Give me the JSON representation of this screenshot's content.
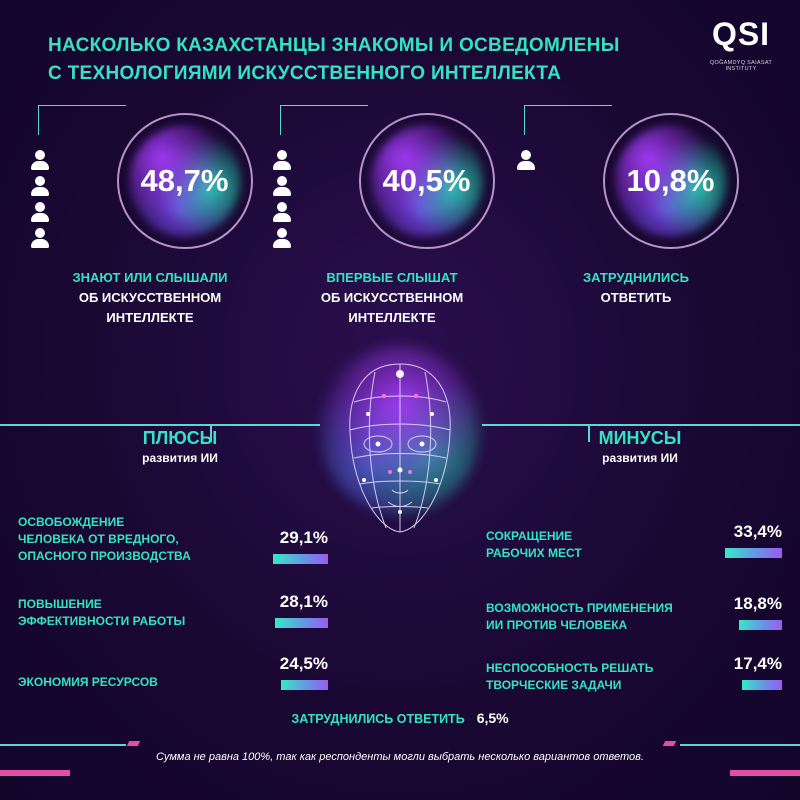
{
  "title": {
    "line1": "НАСКОЛЬКО КАЗАХСТАНЦЫ ЗНАКОМЫ И ОСВЕДОМЛЕНЫ",
    "line2": "С ТЕХНОЛОГИЯМИ ИСКУССТВЕННОГО ИНТЕЛЛЕКТА"
  },
  "logo": {
    "text": "QSI",
    "subtitle": "QOĞAMDYQ SAIASAT INSTITUTY"
  },
  "chart_data": [
    {
      "type": "pie",
      "title": "",
      "categories": [
        "ЗНАЮТ ИЛИ СЛЫШАЛИ ОБ ИСКУССТВЕННОМ ИНТЕЛЛЕКТЕ",
        "ВПЕРВЫЕ СЛЫШАТ ОБ ИСКУССТВЕННОМ ИНТЕЛЛЕКТЕ",
        "ЗАТРУДНИЛИСЬ ОТВЕТИТЬ"
      ],
      "values": [
        48.7,
        40.5,
        10.8
      ],
      "labels": [
        "48,7%",
        "40,5%",
        "10,8%"
      ],
      "items": [
        {
          "value_label": "48,7%",
          "people": 4,
          "l1": "ЗНАЮТ ИЛИ СЛЫШАЛИ",
          "l2": "ОБ ИСКУССТВЕННОМ",
          "l3": "ИНТЕЛЛЕКТЕ"
        },
        {
          "value_label": "40,5%",
          "people": 4,
          "l1": "ВПЕРВЫЕ СЛЫШАТ",
          "l2": "ОБ ИСКУССТВЕННОМ",
          "l3": "ИНТЕЛЛЕКТЕ"
        },
        {
          "value_label": "10,8%",
          "people": 1,
          "l1": "ЗАТРУДНИЛИСЬ",
          "l2": "ОТВЕТИТЬ",
          "l3": ""
        }
      ]
    },
    {
      "type": "bar",
      "title": "ПЛЮСЫ",
      "subtitle": "развития ИИ",
      "orientation": "horizontal",
      "categories": [
        "ОСВОБОЖДЕНИЕ ЧЕЛОВЕКА ОТ ВРЕДНОГО, ОПАСНОГО ПРОИЗВОДСТВА",
        "ПОВЫШЕНИЕ ЭФФЕКТИВНОСТИ РАБОТЫ",
        "ЭКОНОМИЯ РЕСУРСОВ"
      ],
      "values": [
        29.1,
        28.1,
        24.5
      ],
      "labels": [
        "29,1%",
        "28,1%",
        "24,5%"
      ],
      "label_lines": [
        [
          "ОСВОБОЖДЕНИЕ",
          "ЧЕЛОВЕКА ОТ ВРЕДНОГО,",
          "ОПАСНОГО ПРОИЗВОДСТВА"
        ],
        [
          "ПОВЫШЕНИЕ",
          "ЭФФЕКТИВНОСТИ РАБОТЫ"
        ],
        [
          "ЭКОНОМИЯ РЕСУРСОВ"
        ]
      ]
    },
    {
      "type": "bar",
      "title": "МИНУСЫ",
      "subtitle": "развития ИИ",
      "orientation": "horizontal",
      "categories": [
        "СОКРАЩЕНИЕ РАБОЧИХ МЕСТ",
        "ВОЗМОЖНОСТЬ ПРИМЕНЕНИЯ ИИ ПРОТИВ ЧЕЛОВЕКА",
        "НЕСПОСОБНОСТЬ РЕШАТЬ ТВОРЧЕСКИЕ ЗАДАЧИ"
      ],
      "values": [
        33.4,
        18.8,
        17.4
      ],
      "labels": [
        "33,4%",
        "18,8%",
        "17,4%"
      ],
      "label_lines": [
        [
          "СОКРАЩЕНИЕ",
          "РАБОЧИХ МЕСТ"
        ],
        [
          "ВОЗМОЖНОСТЬ ПРИМЕНЕНИЯ",
          "ИИ ПРОТИВ ЧЕЛОВЕКА"
        ],
        [
          "НЕСПОСОБНОСТЬ РЕШАТЬ",
          "ТВОРЧЕСКИЕ ЗАДАЧИ"
        ]
      ]
    }
  ],
  "difficult": {
    "label": "ЗАТРУДНИЛИСЬ ОТВЕТИТЬ",
    "value": 6.5,
    "value_label": "6,5%"
  },
  "note": "Сумма не равна 100%, так как респонденты могли выбрать несколько вариантов ответов.",
  "colors": {
    "accent": "#34e3c3",
    "purple": "#9c5bf0",
    "pink": "#e04fa3",
    "background": "#1a0833"
  }
}
